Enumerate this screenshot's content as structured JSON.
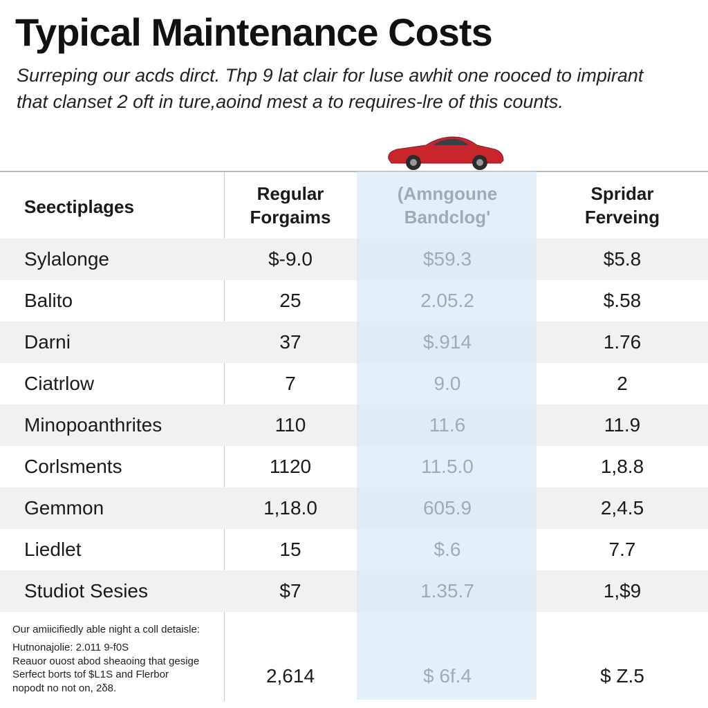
{
  "header": {
    "title": "Typical Maintenance Costs",
    "subtitle": [
      "Surreping our acds dirct. Thp 9 lat clair for luse awhit one rooced to impirant",
      "that clanset 2 oft in ture,aoind mest a to requires-lre of this counts."
    ]
  },
  "table": {
    "headers": [
      [
        "Seectiplages"
      ],
      [
        "Regular",
        "Forgaims"
      ],
      [
        "(Amngoune",
        "Bandclog'"
      ],
      [
        "Spridar",
        "Ferveing"
      ]
    ],
    "rows": [
      [
        "Sylalonge",
        "$-9.0",
        "$59.3",
        "$5.8"
      ],
      [
        "Balito",
        "25",
        "2.05.2",
        "$.58"
      ],
      [
        "Darni",
        "37",
        "$.914",
        "1.76"
      ],
      [
        "Ciatrlow",
        "7",
        "9.0",
        "2"
      ],
      [
        "Minopoanthrites",
        "110",
        "11.6",
        "11.9"
      ],
      [
        "Corlsments",
        "1120",
        "11.5.0",
        "1,8.8"
      ],
      [
        "Gemmon",
        "1,18.0",
        "605.9",
        "2,4.5"
      ],
      [
        "Liedlet",
        "15",
        "$.6",
        "7.7"
      ],
      [
        "Studiot Sesies",
        "$7",
        "1.35.7",
        "1,$9"
      ]
    ],
    "footer_notes": [
      "Our amiicifiedly able night a coll detaisle:",
      "Hutnonajolie: 2.011 9-f0S",
      "Reauor ouost abod sheaoing that gesige",
      "Serfect borts tof $L1S and Flerbor",
      "nopodt no not on, 2δ8."
    ],
    "footer_values": [
      "2,614",
      "$ 6f.4",
      "$ Z.5"
    ]
  }
}
